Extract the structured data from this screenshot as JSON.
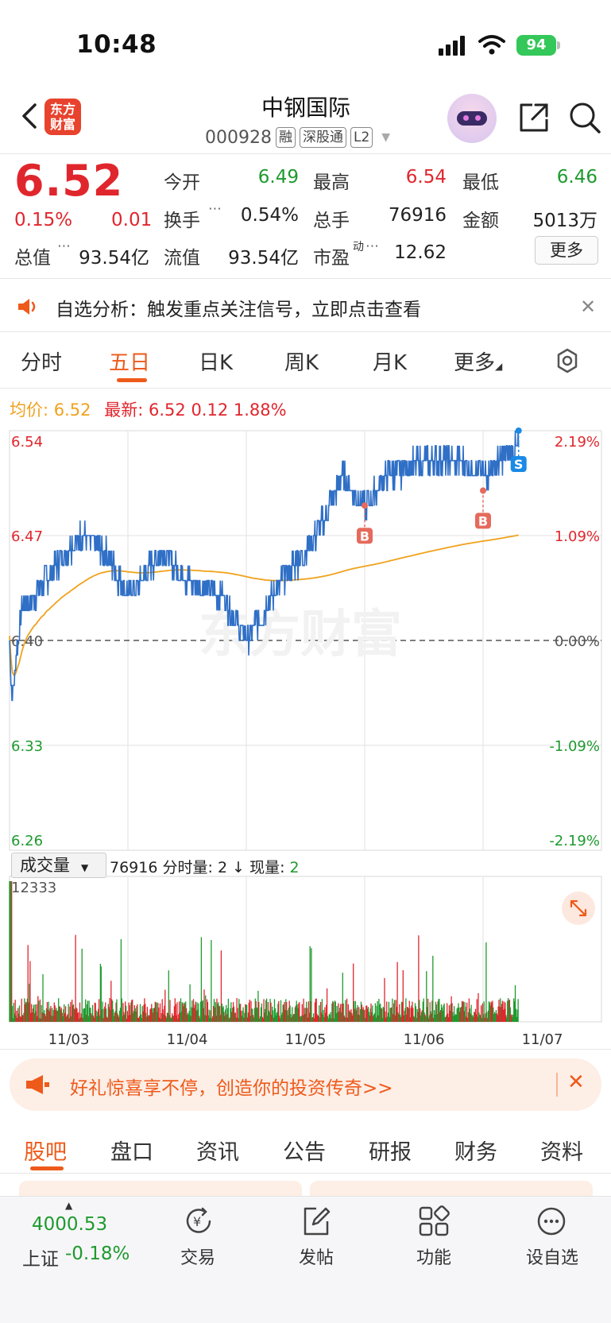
{
  "status_bar": {
    "time": "10:48",
    "battery": "94"
  },
  "header": {
    "logo_line1": "东方",
    "logo_line2": "财富",
    "stock_name": "中钢国际",
    "stock_code": "000928",
    "tags": [
      "融",
      "深股通",
      "L2"
    ]
  },
  "quote": {
    "price": "6.52",
    "change_pct": "0.15%",
    "change_abs": "0.01",
    "open_label": "今开",
    "open": "6.49",
    "high_label": "最高",
    "high": "6.54",
    "low_label": "最低",
    "low": "6.46",
    "turnover_label": "换手",
    "turnover": "0.54%",
    "volume_label": "总手",
    "volume": "76916",
    "amount_label": "金额",
    "amount": "5013万",
    "mktcap_label": "总值",
    "mktcap": "93.54亿",
    "float_label": "流值",
    "float_cap": "93.54亿",
    "pe_label": "市盈",
    "pe_sup": "动",
    "pe": "12.62",
    "more_button": "更多"
  },
  "notice": {
    "text": "自选分析：触发重点关注信号，立即点击查看"
  },
  "chart_tabs": [
    "分时",
    "五日",
    "日K",
    "周K",
    "月K",
    "更多"
  ],
  "chart_info": {
    "avg_label": "均价:",
    "avg": "6.52",
    "latest_label": "最新:",
    "latest": "6.52",
    "latest_chg": "0.12",
    "latest_pct": "1.88%"
  },
  "watermark": "东方财富",
  "chart_data": {
    "type": "line",
    "x": [
      "11/03",
      "11/04",
      "11/05",
      "11/06",
      "11/07"
    ],
    "left_ticks": [
      "6.54",
      "6.47",
      "6.40",
      "6.33",
      "6.26"
    ],
    "right_ticks": [
      "2.19%",
      "1.09%",
      "0.00%",
      "-1.09%",
      "-2.19%"
    ],
    "ylim": [
      6.26,
      6.54
    ],
    "prev_close": 6.4,
    "series": [],
    "markers": [
      {
        "label": "B",
        "day": 3.0,
        "price": 6.49
      },
      {
        "label": "B",
        "day": 4.0,
        "price": 6.5
      },
      {
        "label": "S",
        "day": 4.3,
        "price": 6.54
      }
    ]
  },
  "volume": {
    "select_label": "成交量",
    "total": "76916",
    "period_label": "分时量:",
    "period_value": "2",
    "arrow": "↓",
    "current_label": "现量:",
    "current_value": "2",
    "max_label": "12333"
  },
  "promo": {
    "text": "好礼惊喜享不停，创造你的投资传奇>>"
  },
  "bottom_tabs": [
    "股吧",
    "盘口",
    "资讯",
    "公告",
    "研报",
    "财务",
    "资料"
  ],
  "nav": {
    "index_value": "4000.53",
    "index_name": "上证",
    "index_change": "-0.18%",
    "items": [
      "交易",
      "发帖",
      "功能",
      "设自选"
    ]
  },
  "colors": {
    "accent": "#ee5a1a",
    "up": "#e0262d",
    "down": "#1e9a2e",
    "price_line": "#2f6fc6",
    "avg_line": "#f0a21c"
  }
}
